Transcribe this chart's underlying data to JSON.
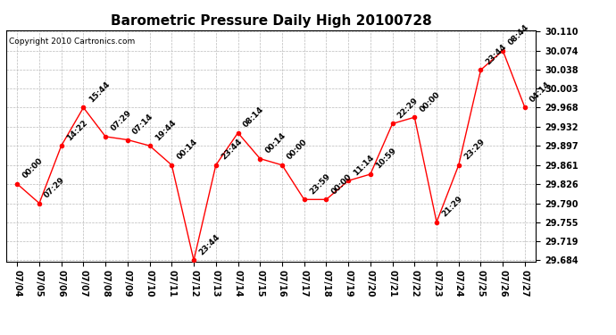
{
  "title": "Barometric Pressure Daily High 20100728",
  "copyright": "Copyright 2010 Cartronics.com",
  "x_labels": [
    "07/04",
    "07/05",
    "07/06",
    "07/07",
    "07/08",
    "07/09",
    "07/10",
    "07/11",
    "07/12",
    "07/13",
    "07/14",
    "07/15",
    "07/16",
    "07/17",
    "07/18",
    "07/19",
    "07/20",
    "07/21",
    "07/22",
    "07/23",
    "07/24",
    "07/25",
    "07/26",
    "07/27"
  ],
  "y_values": [
    29.826,
    29.79,
    29.897,
    29.968,
    29.914,
    29.908,
    29.897,
    29.861,
    29.684,
    29.861,
    29.921,
    29.873,
    29.861,
    29.797,
    29.797,
    29.832,
    29.844,
    29.938,
    29.95,
    29.755,
    29.861,
    30.038,
    30.074,
    29.968
  ],
  "time_labels": [
    "00:00",
    "07:29",
    "14:22",
    "15:44",
    "07:29",
    "07:14",
    "19:44",
    "00:14",
    "23:44",
    "23:44",
    "08:14",
    "00:14",
    "00:00",
    "23:59",
    "00:00",
    "11:14",
    "10:59",
    "22:29",
    "00:00",
    "21:29",
    "23:29",
    "23:44",
    "08:44",
    "04:14"
  ],
  "yticks": [
    29.684,
    29.719,
    29.755,
    29.79,
    29.826,
    29.861,
    29.897,
    29.932,
    29.968,
    30.003,
    30.038,
    30.074,
    30.11
  ],
  "line_color": "#ff0000",
  "marker_color": "#ff0000",
  "bg_color": "#ffffff",
  "grid_color": "#bbbbbb",
  "title_fontsize": 11,
  "tick_fontsize": 7,
  "annotation_fontsize": 6.5,
  "ylim_min": 29.684,
  "ylim_max": 30.11
}
